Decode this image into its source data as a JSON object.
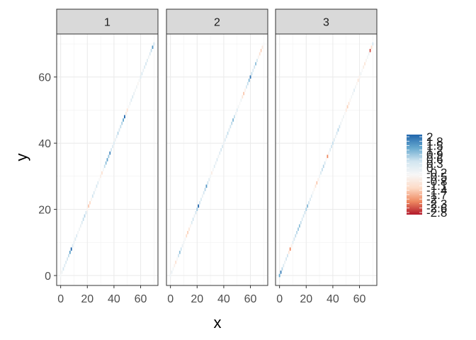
{
  "chart_data": {
    "type": "heatmap",
    "xlabel": "x",
    "ylabel": "y",
    "xlim": [
      -3,
      73
    ],
    "ylim": [
      -3,
      73
    ],
    "x_ticks": [
      0,
      20,
      40,
      60
    ],
    "y_ticks": [
      0,
      20,
      40,
      60
    ],
    "grid": true,
    "legend": {
      "position": "right",
      "colors": [
        "#b2182b",
        "#ef8a62",
        "#fddbc7",
        "#f7f7f7",
        "#d1e5f0",
        "#67a9cf",
        "#2166ac"
      ],
      "range": [
        -2.8,
        2.0
      ],
      "labels": [
        "2",
        "1.8",
        "1.5",
        "1.2",
        "0.9",
        "0.6",
        "0.3",
        "0",
        "-0.2",
        "-0.5",
        "-0.8",
        "-1.1",
        "-1.4",
        "-1.7",
        "-2",
        "-2.3",
        "-2.6",
        "-2.8"
      ]
    },
    "panels": [
      {
        "strip": "1",
        "tiles": [
          {
            "x": 0,
            "v": -0.3
          },
          {
            "x": 1,
            "v": -0.2
          },
          {
            "x": 2,
            "v": 0.3
          },
          {
            "x": 3,
            "v": 0.1
          },
          {
            "x": 4,
            "v": 0.2
          },
          {
            "x": 5,
            "v": 0.3
          },
          {
            "x": 6,
            "v": 0.5
          },
          {
            "x": 7,
            "v": 1.3
          },
          {
            "x": 8,
            "v": 2.0
          },
          {
            "x": 9,
            "v": 0.2
          },
          {
            "x": 10,
            "v": -0.1
          },
          {
            "x": 11,
            "v": 0.1
          },
          {
            "x": 12,
            "v": 0.2
          },
          {
            "x": 13,
            "v": -0.3
          },
          {
            "x": 14,
            "v": -0.2
          },
          {
            "x": 15,
            "v": -0.1
          },
          {
            "x": 16,
            "v": 0.2
          },
          {
            "x": 17,
            "v": 0.5
          },
          {
            "x": 18,
            "v": 0.6
          },
          {
            "x": 19,
            "v": 0.2
          },
          {
            "x": 20,
            "v": -0.6
          },
          {
            "x": 21,
            "v": -1.4
          },
          {
            "x": 22,
            "v": -1.2
          },
          {
            "x": 23,
            "v": -0.5
          },
          {
            "x": 24,
            "v": 0.4
          },
          {
            "x": 25,
            "v": 0.2
          },
          {
            "x": 26,
            "v": -0.2
          },
          {
            "x": 27,
            "v": 0.3
          },
          {
            "x": 28,
            "v": 0.1
          },
          {
            "x": 29,
            "v": -0.4
          },
          {
            "x": 30,
            "v": -0.7
          },
          {
            "x": 31,
            "v": -1.0
          },
          {
            "x": 32,
            "v": -0.3
          },
          {
            "x": 33,
            "v": 0.5
          },
          {
            "x": 34,
            "v": 0.9
          },
          {
            "x": 35,
            "v": 1.3
          },
          {
            "x": 36,
            "v": 0.8
          },
          {
            "x": 37,
            "v": 1.6
          },
          {
            "x": 38,
            "v": 0.3
          },
          {
            "x": 39,
            "v": 0.1
          },
          {
            "x": 40,
            "v": 0.2
          },
          {
            "x": 41,
            "v": -0.1
          },
          {
            "x": 42,
            "v": 0.2
          },
          {
            "x": 43,
            "v": 0.6
          },
          {
            "x": 44,
            "v": 0.3
          },
          {
            "x": 45,
            "v": 0.5
          },
          {
            "x": 46,
            "v": 0.7
          },
          {
            "x": 47,
            "v": 1.2
          },
          {
            "x": 48,
            "v": 2.0
          },
          {
            "x": 49,
            "v": -0.8
          },
          {
            "x": 50,
            "v": -1.0
          },
          {
            "x": 51,
            "v": -0.4
          },
          {
            "x": 52,
            "v": -0.2
          },
          {
            "x": 53,
            "v": 0.1
          },
          {
            "x": 54,
            "v": 0.2
          },
          {
            "x": 55,
            "v": -0.1
          },
          {
            "x": 56,
            "v": -0.3
          },
          {
            "x": 57,
            "v": -0.2
          },
          {
            "x": 58,
            "v": -0.5
          },
          {
            "x": 59,
            "v": -0.3
          },
          {
            "x": 60,
            "v": 0.1
          },
          {
            "x": 61,
            "v": 0.2
          },
          {
            "x": 62,
            "v": -0.1
          },
          {
            "x": 63,
            "v": 0.2
          },
          {
            "x": 64,
            "v": 0.3
          },
          {
            "x": 65,
            "v": 0.1
          },
          {
            "x": 66,
            "v": -0.2
          },
          {
            "x": 67,
            "v": 0.2
          },
          {
            "x": 68,
            "v": 0.5
          },
          {
            "x": 69,
            "v": 1.4
          },
          {
            "x": 70,
            "v": 0.4
          }
        ]
      },
      {
        "strip": "2",
        "tiles": [
          {
            "x": 0,
            "v": -0.2
          },
          {
            "x": 1,
            "v": -0.1
          },
          {
            "x": 2,
            "v": -0.3
          },
          {
            "x": 3,
            "v": -0.6
          },
          {
            "x": 4,
            "v": -1.0
          },
          {
            "x": 5,
            "v": -0.4
          },
          {
            "x": 6,
            "v": 0.4
          },
          {
            "x": 7,
            "v": 0.9
          },
          {
            "x": 8,
            "v": 0.4
          },
          {
            "x": 9,
            "v": -0.1
          },
          {
            "x": 10,
            "v": -0.2
          },
          {
            "x": 11,
            "v": -0.3
          },
          {
            "x": 12,
            "v": -1.1
          },
          {
            "x": 13,
            "v": -1.3
          },
          {
            "x": 14,
            "v": -0.9
          },
          {
            "x": 15,
            "v": -0.5
          },
          {
            "x": 16,
            "v": 0.2
          },
          {
            "x": 17,
            "v": 0.4
          },
          {
            "x": 18,
            "v": -0.1
          },
          {
            "x": 19,
            "v": 0.3
          },
          {
            "x": 20,
            "v": 0.8
          },
          {
            "x": 21,
            "v": 2.0
          },
          {
            "x": 22,
            "v": 0.4
          },
          {
            "x": 23,
            "v": 0.2
          },
          {
            "x": 24,
            "v": -0.1
          },
          {
            "x": 25,
            "v": 0.3
          },
          {
            "x": 26,
            "v": 0.6
          },
          {
            "x": 27,
            "v": 1.4
          },
          {
            "x": 28,
            "v": 0.4
          },
          {
            "x": 29,
            "v": 0.1
          },
          {
            "x": 30,
            "v": -0.3
          },
          {
            "x": 31,
            "v": -0.7
          },
          {
            "x": 32,
            "v": -0.3
          },
          {
            "x": 33,
            "v": 0.1
          },
          {
            "x": 34,
            "v": -0.1
          },
          {
            "x": 35,
            "v": 0.2
          },
          {
            "x": 36,
            "v": -0.2
          },
          {
            "x": 37,
            "v": 0.1
          },
          {
            "x": 38,
            "v": 0.3
          },
          {
            "x": 39,
            "v": 0.2
          },
          {
            "x": 40,
            "v": -0.1
          },
          {
            "x": 41,
            "v": 0.1
          },
          {
            "x": 42,
            "v": 0.3
          },
          {
            "x": 43,
            "v": 0.5
          },
          {
            "x": 44,
            "v": 0.2
          },
          {
            "x": 45,
            "v": 0.4
          },
          {
            "x": 46,
            "v": 0.6
          },
          {
            "x": 47,
            "v": 1.0
          },
          {
            "x": 48,
            "v": 0.5
          },
          {
            "x": 49,
            "v": -0.2
          },
          {
            "x": 50,
            "v": 0.1
          },
          {
            "x": 51,
            "v": -0.3
          },
          {
            "x": 52,
            "v": -0.4
          },
          {
            "x": 53,
            "v": -0.2
          },
          {
            "x": 54,
            "v": -0.9
          },
          {
            "x": 55,
            "v": -1.4
          },
          {
            "x": 56,
            "v": -0.6
          },
          {
            "x": 57,
            "v": 0.3
          },
          {
            "x": 58,
            "v": 0.5
          },
          {
            "x": 59,
            "v": 1.0
          },
          {
            "x": 60,
            "v": 1.8
          },
          {
            "x": 61,
            "v": 0.5
          },
          {
            "x": 62,
            "v": 0.2
          },
          {
            "x": 63,
            "v": 0.4
          },
          {
            "x": 64,
            "v": 0.9
          },
          {
            "x": 65,
            "v": 0.3
          },
          {
            "x": 66,
            "v": -0.5
          },
          {
            "x": 67,
            "v": -1.0
          },
          {
            "x": 68,
            "v": -1.3
          },
          {
            "x": 69,
            "v": -0.8
          },
          {
            "x": 70,
            "v": -0.4
          }
        ]
      },
      {
        "strip": "3",
        "tiles": [
          {
            "x": 0,
            "v": 1.2
          },
          {
            "x": 1,
            "v": 1.7
          },
          {
            "x": 2,
            "v": 0.6
          },
          {
            "x": 3,
            "v": 0.2
          },
          {
            "x": 4,
            "v": -0.1
          },
          {
            "x": 5,
            "v": 0.3
          },
          {
            "x": 6,
            "v": 0.4
          },
          {
            "x": 7,
            "v": -0.9
          },
          {
            "x": 8,
            "v": -2.0
          },
          {
            "x": 9,
            "v": -0.6
          },
          {
            "x": 10,
            "v": 0.1
          },
          {
            "x": 11,
            "v": 0.3
          },
          {
            "x": 12,
            "v": 0.5
          },
          {
            "x": 13,
            "v": 0.6
          },
          {
            "x": 14,
            "v": 0.8
          },
          {
            "x": 15,
            "v": 0.9
          },
          {
            "x": 16,
            "v": 0.5
          },
          {
            "x": 17,
            "v": 0.2
          },
          {
            "x": 18,
            "v": 0.3
          },
          {
            "x": 19,
            "v": 0.4
          },
          {
            "x": 20,
            "v": 0.7
          },
          {
            "x": 21,
            "v": 1.0
          },
          {
            "x": 22,
            "v": 0.4
          },
          {
            "x": 23,
            "v": 0.2
          },
          {
            "x": 24,
            "v": 0.1
          },
          {
            "x": 25,
            "v": -0.3
          },
          {
            "x": 26,
            "v": -0.5
          },
          {
            "x": 27,
            "v": -0.9
          },
          {
            "x": 28,
            "v": -1.4
          },
          {
            "x": 29,
            "v": -0.6
          },
          {
            "x": 30,
            "v": -0.2
          },
          {
            "x": 31,
            "v": 0.2
          },
          {
            "x": 32,
            "v": 0.5
          },
          {
            "x": 33,
            "v": 0.6
          },
          {
            "x": 34,
            "v": 0.3
          },
          {
            "x": 35,
            "v": -0.4
          },
          {
            "x": 36,
            "v": -2.0
          },
          {
            "x": 37,
            "v": -0.3
          },
          {
            "x": 38,
            "v": 0.1
          },
          {
            "x": 39,
            "v": 0.4
          },
          {
            "x": 40,
            "v": 0.5
          },
          {
            "x": 41,
            "v": 0.2
          },
          {
            "x": 42,
            "v": -0.1
          },
          {
            "x": 43,
            "v": 0.3
          },
          {
            "x": 44,
            "v": 0.6
          },
          {
            "x": 45,
            "v": 0.4
          },
          {
            "x": 46,
            "v": -0.2
          },
          {
            "x": 47,
            "v": -0.3
          },
          {
            "x": 48,
            "v": -0.2
          },
          {
            "x": 49,
            "v": -0.4
          },
          {
            "x": 50,
            "v": -0.8
          },
          {
            "x": 51,
            "v": -1.3
          },
          {
            "x": 52,
            "v": -0.9
          },
          {
            "x": 53,
            "v": -0.5
          },
          {
            "x": 54,
            "v": -0.3
          },
          {
            "x": 55,
            "v": -0.2
          },
          {
            "x": 56,
            "v": 0.1
          },
          {
            "x": 57,
            "v": -0.3
          },
          {
            "x": 58,
            "v": -0.5
          },
          {
            "x": 59,
            "v": -0.9
          },
          {
            "x": 60,
            "v": -0.6
          },
          {
            "x": 61,
            "v": -0.2
          },
          {
            "x": 62,
            "v": -0.4
          },
          {
            "x": 63,
            "v": -0.7
          },
          {
            "x": 64,
            "v": -0.9
          },
          {
            "x": 65,
            "v": -0.5
          },
          {
            "x": 66,
            "v": -0.3
          },
          {
            "x": 67,
            "v": -0.2
          },
          {
            "x": 68,
            "v": -2.4
          },
          {
            "x": 69,
            "v": -1.1
          },
          {
            "x": 70,
            "v": 0.3
          }
        ]
      }
    ]
  }
}
